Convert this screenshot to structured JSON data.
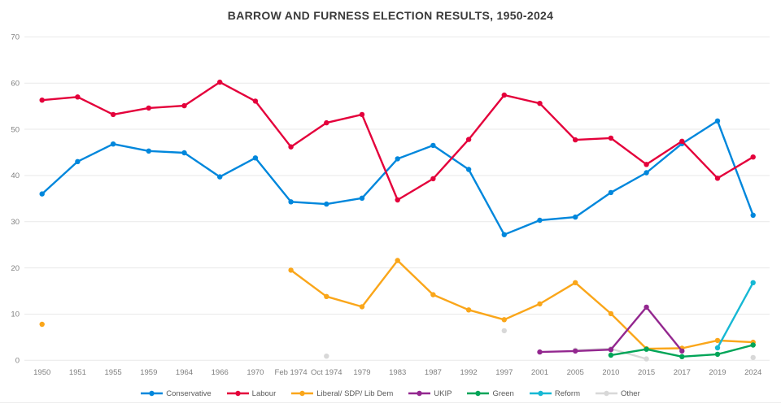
{
  "chart_data": {
    "type": "line",
    "title": "BARROW AND FURNESS ELECTION RESULTS, 1950-2024",
    "categories": [
      "1950",
      "1951",
      "1955",
      "1959",
      "1964",
      "1966",
      "1970",
      "Feb 1974",
      "Oct 1974",
      "1979",
      "1983",
      "1987",
      "1992",
      "1997",
      "2001",
      "2005",
      "2010",
      "2015",
      "2017",
      "2019",
      "2024"
    ],
    "ylim": [
      0,
      70
    ],
    "yticks": [
      0,
      10,
      20,
      30,
      40,
      50,
      60,
      70
    ],
    "grid": "horizontal-only",
    "legend_position": "bottom",
    "xlabel": "",
    "ylabel": "",
    "series": [
      {
        "name": "Conservative",
        "color": "#0087DC",
        "values": [
          36.0,
          43.0,
          46.8,
          45.3,
          44.9,
          39.7,
          43.8,
          34.3,
          33.8,
          35.1,
          43.6,
          46.5,
          41.3,
          27.2,
          30.3,
          31.0,
          36.3,
          40.6,
          46.9,
          51.8,
          31.4
        ]
      },
      {
        "name": "Labour",
        "color": "#E4003B",
        "values": [
          56.3,
          57.0,
          53.2,
          54.6,
          55.1,
          60.2,
          56.1,
          46.2,
          51.4,
          53.2,
          34.7,
          39.3,
          47.8,
          57.4,
          55.6,
          47.7,
          48.1,
          42.4,
          47.4,
          39.4,
          44.0
        ]
      },
      {
        "name": "Liberal/ SDP/ Lib Dem",
        "color": "#FAA61A",
        "values": [
          7.8,
          null,
          null,
          null,
          null,
          null,
          null,
          19.5,
          13.8,
          11.6,
          21.6,
          14.2,
          10.9,
          8.8,
          12.2,
          16.8,
          10.1,
          2.5,
          2.6,
          4.3,
          3.9
        ]
      },
      {
        "name": "UKIP",
        "color": "#93278F",
        "values": [
          null,
          null,
          null,
          null,
          null,
          null,
          null,
          null,
          null,
          null,
          null,
          null,
          null,
          null,
          1.8,
          2.0,
          2.3,
          11.5,
          2.0,
          null,
          null
        ]
      },
      {
        "name": "Green",
        "color": "#02A558",
        "values": [
          null,
          null,
          null,
          null,
          null,
          null,
          null,
          null,
          null,
          null,
          null,
          null,
          null,
          null,
          null,
          null,
          1.1,
          2.4,
          0.8,
          1.3,
          3.3
        ]
      },
      {
        "name": "Reform",
        "color": "#16B8D4",
        "values": [
          null,
          null,
          null,
          null,
          null,
          null,
          null,
          null,
          null,
          null,
          null,
          null,
          null,
          null,
          null,
          null,
          null,
          null,
          null,
          2.7,
          16.8
        ]
      },
      {
        "name": "Other",
        "color": "#D8D8D8",
        "values": [
          null,
          null,
          null,
          null,
          null,
          null,
          null,
          null,
          0.9,
          null,
          null,
          null,
          null,
          6.4,
          null,
          2.2,
          2.5,
          0.3,
          null,
          null,
          0.6
        ]
      }
    ],
    "colors": {
      "grid": "#E9E9E9",
      "axis_labels": "#7F7F7F",
      "legend_text": "#595959",
      "title_text": "#3A3A3A",
      "background": "#FFFFFF"
    }
  }
}
